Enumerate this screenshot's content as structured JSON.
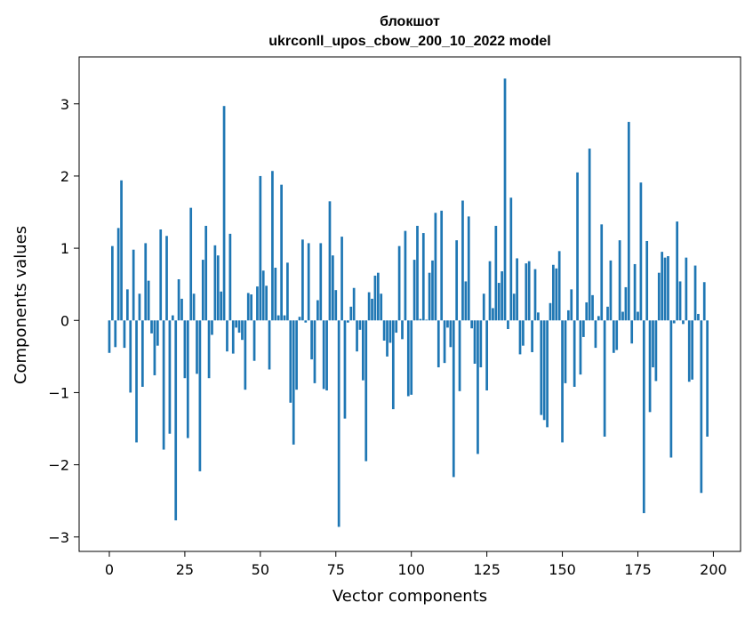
{
  "chart_data": {
    "type": "bar",
    "title_line1": "блокшот",
    "title_line2": "ukrconll_upos_cbow_200_10_2022 model",
    "xlabel": "Vector components",
    "ylabel": "Components values",
    "xlim": [
      -10,
      209
    ],
    "ylim": [
      -3.2,
      3.65
    ],
    "grid": false,
    "color": "#1f77b4",
    "x_ticks": [
      0,
      25,
      50,
      75,
      100,
      125,
      150,
      175,
      200
    ],
    "x_tick_labels": [
      "0",
      "25",
      "50",
      "75",
      "100",
      "125",
      "150",
      "175",
      "200"
    ],
    "y_ticks": [
      -3,
      -2,
      -1,
      0,
      1,
      2,
      3
    ],
    "y_tick_labels": [
      "−3",
      "−2",
      "−1",
      "0",
      "1",
      "2",
      "3"
    ],
    "values": [
      -0.45,
      1.03,
      -0.37,
      1.28,
      1.94,
      -0.38,
      0.43,
      -1.0,
      0.98,
      -1.69,
      0.37,
      -0.92,
      1.07,
      0.55,
      -0.18,
      -0.76,
      -0.35,
      1.26,
      -1.79,
      1.17,
      -1.57,
      0.07,
      -2.77,
      0.57,
      0.3,
      -0.8,
      -1.63,
      1.56,
      0.37,
      -0.74,
      -2.09,
      0.84,
      1.31,
      -0.8,
      -0.2,
      1.04,
      0.9,
      0.4,
      2.97,
      -0.43,
      1.2,
      -0.46,
      -0.1,
      -0.17,
      -0.27,
      -0.96,
      0.38,
      0.36,
      -0.56,
      0.47,
      2.0,
      0.69,
      0.48,
      -0.68,
      2.07,
      0.73,
      0.07,
      1.88,
      0.07,
      0.8,
      -1.14,
      -1.72,
      -0.96,
      0.05,
      1.12,
      -0.03,
      1.07,
      -0.54,
      -0.87,
      0.28,
      1.07,
      -0.95,
      -0.97,
      1.65,
      0.9,
      0.42,
      -2.86,
      1.16,
      -1.36,
      -0.03,
      0.19,
      0.45,
      -0.43,
      -0.13,
      -0.83,
      -1.95,
      0.39,
      0.3,
      0.62,
      0.66,
      0.37,
      -0.28,
      -0.5,
      -0.31,
      -1.23,
      -0.17,
      1.03,
      -0.26,
      1.24,
      -1.05,
      -1.03,
      0.84,
      1.31,
      0.02,
      1.21,
      0.01,
      0.66,
      0.83,
      1.49,
      -0.65,
      1.52,
      -0.59,
      -0.1,
      -0.37,
      -2.17,
      1.11,
      -0.98,
      1.66,
      0.54,
      1.44,
      -0.11,
      -0.6,
      -1.85,
      -0.65,
      0.37,
      -0.97,
      0.82,
      0.17,
      1.31,
      0.52,
      0.68,
      3.35,
      -0.12,
      1.7,
      0.37,
      0.86,
      -0.47,
      -0.35,
      0.79,
      0.82,
      -0.44,
      0.71,
      0.11,
      -1.31,
      -1.38,
      -1.48,
      0.24,
      0.77,
      0.72,
      0.96,
      -1.69,
      -0.87,
      0.14,
      0.43,
      -0.92,
      2.05,
      -0.75,
      -0.23,
      0.25,
      2.38,
      0.35,
      -0.38,
      0.06,
      1.33,
      -1.61,
      0.19,
      0.83,
      -0.45,
      -0.41,
      1.11,
      0.12,
      0.46,
      2.75,
      -0.32,
      0.78,
      0.12,
      1.91,
      -2.67,
      1.1,
      -1.27,
      -0.65,
      -0.84,
      0.66,
      0.95,
      0.87,
      0.89,
      -1.9,
      -0.04,
      1.37,
      0.54,
      -0.05,
      0.87,
      -0.85,
      -0.82,
      0.76,
      0.09,
      -2.39,
      0.53,
      -1.61
    ]
  }
}
